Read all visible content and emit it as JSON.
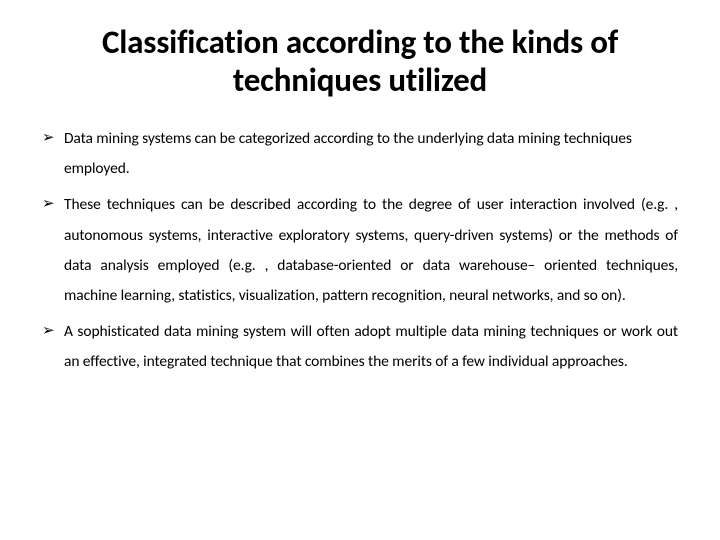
{
  "title_color": "#000000",
  "bullet_color": "#000000",
  "background_color": "#ffffff",
  "title": "Classification according to the kinds of techniques utilized",
  "bullets": [
    {
      "arrow": "➢",
      "text": "Data mining systems can be categorized according to the underlying data mining techniques employed.",
      "justify": false
    },
    {
      "arrow": "➢",
      "text": "These techniques can be described according to the degree of user interaction involved (e.g. , autonomous systems, interactive exploratory systems, query-driven systems) or the methods of data analysis employed (e.g. , database-oriented or data warehouse– oriented techniques, machine learning, statistics, visualization, pattern recognition, neural networks, and so on).",
      "justify": true
    },
    {
      "arrow": "➢",
      "text": "A sophisticated data mining system will often adopt multiple data mining techniques or work out an effective, integrated technique that combines the merits of a few individual approaches.",
      "justify": true
    }
  ]
}
